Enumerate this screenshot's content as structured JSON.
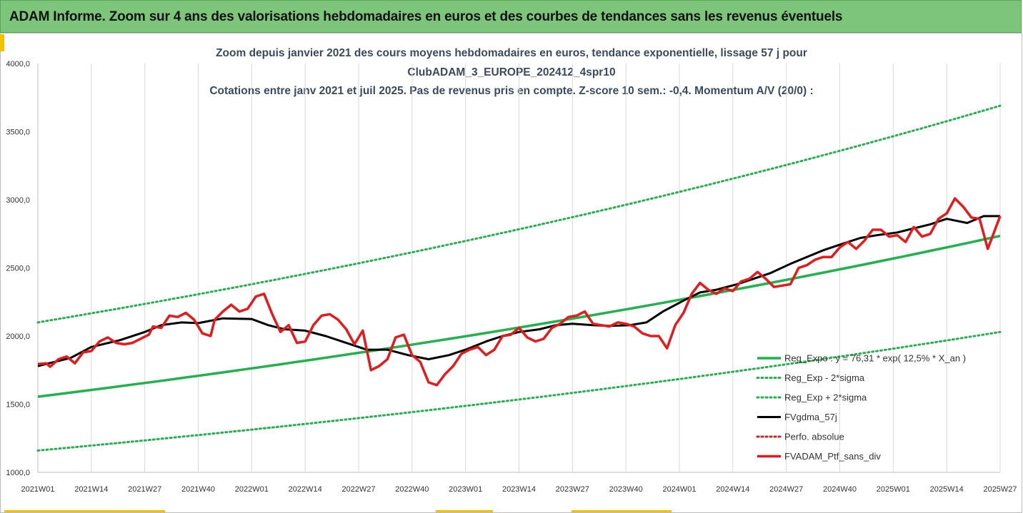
{
  "banner": {
    "title": "ADAM Informe. Zoom sur 4 ans des valorisations hebdomadaires en euros et des courbes de tendances sans les revenus éventuels"
  },
  "chart_data": {
    "type": "line",
    "title_lines": [
      "Zoom depuis janvier 2021 des cours moyens hebdomadaires  en euros, tendance exponentielle, lissage 57 j pour",
      "ClubADAM_3_EUROPE_202412_4spr10",
      "Cotations entre janv 2021 et juil 2025. Pas de revenus pris en compte. Z-score 10 sem.: -0,4. Momentum A/V (20/0) :"
    ],
    "ylim": [
      1000,
      4000
    ],
    "yticks": [
      "1000,0",
      "1500,0",
      "2000,0",
      "2500,0",
      "3000,0",
      "3500,0",
      "4000,0"
    ],
    "xticks": [
      "2021W01",
      "2021W14",
      "2021W27",
      "2021W40",
      "2022W01",
      "2022W14",
      "2022W27",
      "2022W40",
      "2023W01",
      "2023W14",
      "2023W27",
      "2023W40",
      "2024W01",
      "2024W14",
      "2024W27",
      "2024W40",
      "2025W01",
      "2025W14",
      "2025W27"
    ],
    "x_range_weeks": [
      0,
      234
    ],
    "grid": "vertical",
    "legend_position": "bottom-right",
    "series": [
      {
        "name": "Reg_Expo : y = 76,31 * exp( 12,5% *  X_an )",
        "color": "#22b14c",
        "style": "solid-thick",
        "x": [
          0,
          234
        ],
        "y": [
          1555,
          2735
        ],
        "curve": "exponential"
      },
      {
        "name": "Reg_Exp - 2*sigma",
        "color": "#22b14c",
        "style": "dotted",
        "x": [
          0,
          234
        ],
        "y": [
          1160,
          2030
        ],
        "curve": "exponential"
      },
      {
        "name": "Reg_Exp + 2*sigma",
        "color": "#22b14c",
        "style": "dotted",
        "x": [
          0,
          234
        ],
        "y": [
          2100,
          3690
        ],
        "curve": "exponential"
      },
      {
        "name": "FVgdma_57j",
        "color": "#000000",
        "style": "solid",
        "x": [
          0,
          8,
          13,
          20,
          26,
          30,
          35,
          39,
          45,
          52,
          56,
          60,
          65,
          70,
          75,
          80,
          85,
          90,
          95,
          100,
          104,
          109,
          113,
          117,
          122,
          126,
          130,
          135,
          139,
          144,
          148,
          152,
          157,
          161,
          165,
          170,
          174,
          178,
          183,
          187,
          191,
          196,
          200,
          204,
          209,
          213,
          217,
          221,
          226,
          230,
          234
        ],
        "y": [
          1780,
          1840,
          1920,
          1970,
          2030,
          2080,
          2100,
          2095,
          2130,
          2125,
          2080,
          2050,
          2040,
          2000,
          1950,
          1900,
          1900,
          1860,
          1830,
          1860,
          1900,
          1960,
          2000,
          2030,
          2050,
          2080,
          2090,
          2080,
          2075,
          2080,
          2100,
          2180,
          2260,
          2320,
          2340,
          2380,
          2420,
          2460,
          2530,
          2580,
          2630,
          2680,
          2720,
          2740,
          2760,
          2790,
          2820,
          2860,
          2830,
          2880,
          2880
        ]
      },
      {
        "name": "Perfo. absolue",
        "color": "#e31b1b",
        "style": "dotted",
        "x": [],
        "y": []
      },
      {
        "name": "FVADAM_Ptf_sans_div",
        "color": "#e31b1b",
        "style": "solid-thick",
        "x": [
          0,
          2,
          3,
          5,
          7,
          9,
          11,
          13,
          15,
          17,
          19,
          21,
          23,
          25,
          27,
          28,
          30,
          32,
          34,
          36,
          38,
          40,
          42,
          43,
          45,
          47,
          49,
          51,
          53,
          55,
          57,
          59,
          61,
          63,
          65,
          67,
          69,
          71,
          73,
          75,
          77,
          79,
          81,
          83,
          85,
          87,
          89,
          91,
          93,
          95,
          97,
          99,
          101,
          103,
          105,
          107,
          109,
          111,
          113,
          115,
          117,
          119,
          121,
          123,
          125,
          127,
          129,
          131,
          133,
          135,
          137,
          139,
          141,
          143,
          145,
          147,
          149,
          151,
          153,
          155,
          157,
          159,
          161,
          163,
          165,
          167,
          169,
          171,
          173,
          175,
          177,
          179,
          181,
          183,
          185,
          187,
          189,
          191,
          193,
          195,
          197,
          199,
          201,
          203,
          205,
          207,
          209,
          211,
          213,
          215,
          217,
          219,
          221,
          223,
          225,
          227,
          229,
          231,
          234
        ],
        "y": [
          1795,
          1800,
          1775,
          1830,
          1850,
          1800,
          1880,
          1890,
          1960,
          1990,
          1950,
          1940,
          1950,
          1980,
          2010,
          2070,
          2060,
          2150,
          2140,
          2170,
          2120,
          2020,
          2000,
          2120,
          2180,
          2230,
          2180,
          2200,
          2290,
          2310,
          2160,
          2030,
          2080,
          1950,
          1960,
          2080,
          2150,
          2160,
          2120,
          2050,
          1940,
          2040,
          1750,
          1780,
          1830,
          1990,
          2010,
          1860,
          1810,
          1660,
          1640,
          1720,
          1780,
          1870,
          1900,
          1920,
          1860,
          1900,
          2000,
          2010,
          2060,
          1990,
          1960,
          1980,
          2060,
          2090,
          2140,
          2150,
          2180,
          2090,
          2080,
          2070,
          2100,
          2090,
          2070,
          2020,
          2000,
          2000,
          1910,
          2080,
          2170,
          2310,
          2390,
          2340,
          2310,
          2350,
          2330,
          2400,
          2420,
          2470,
          2420,
          2360,
          2370,
          2380,
          2500,
          2520,
          2560,
          2580,
          2580,
          2650,
          2690,
          2640,
          2700,
          2780,
          2780,
          2730,
          2740,
          2690,
          2800,
          2730,
          2750,
          2860,
          2900,
          3010,
          2950,
          2870,
          2860,
          2640,
          2880
        ]
      }
    ]
  }
}
